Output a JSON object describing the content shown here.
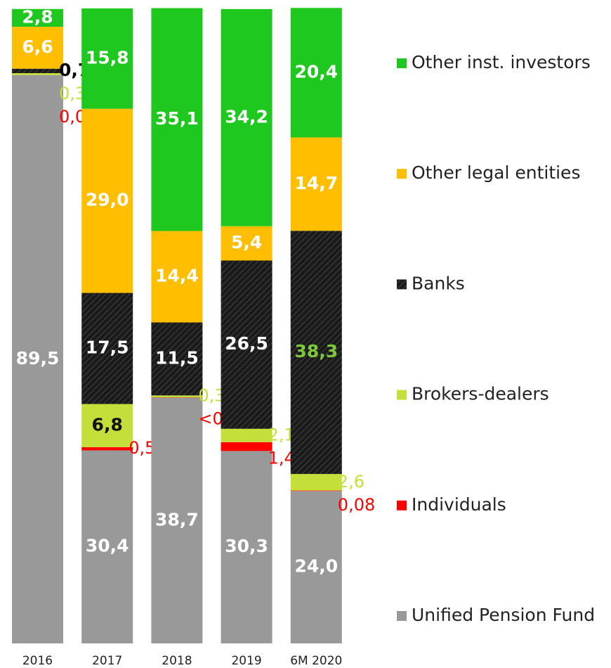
{
  "chart_data": {
    "type": "stacked_bar",
    "categories": [
      "2016",
      "2017",
      "2018",
      "2019",
      "6M 2020"
    ],
    "ylim": [
      0,
      100
    ],
    "series": [
      {
        "name": "Unified Pension Fund",
        "color": "#999999",
        "values": [
          89.5,
          30.4,
          38.7,
          30.3,
          24.0
        ],
        "value_labels": [
          "89,5",
          "30,4",
          "38,7",
          "30,3",
          "24,0"
        ]
      },
      {
        "name": "Individuals",
        "color": "#ff0000",
        "values": [
          0.01,
          0.5,
          0.05,
          1.4,
          0.08
        ],
        "value_labels": [
          "0,01",
          "0,5",
          "<0,1",
          "1,4",
          "0,08"
        ]
      },
      {
        "name": "Brokers-dealers",
        "color": "#c5df3a",
        "values": [
          0.3,
          6.8,
          0.3,
          2.1,
          2.6
        ],
        "value_labels": [
          "0,3",
          "6,8",
          "0,3",
          "2,1",
          "2,6"
        ]
      },
      {
        "name": "Banks",
        "color": "#1a1a1a",
        "hatched": true,
        "values": [
          0.7,
          17.5,
          11.5,
          26.5,
          38.3
        ],
        "value_labels": [
          "0,7",
          "17,5",
          "11,5",
          "26,5",
          "38,3"
        ]
      },
      {
        "name": "Other legal entities",
        "color": "#ffbf00",
        "values": [
          6.6,
          29.0,
          14.4,
          5.4,
          14.7
        ],
        "value_labels": [
          "6,6",
          "29,0",
          "14,4",
          "5,4",
          "14,7"
        ]
      },
      {
        "name": "Other inst. investors",
        "color": "#1ec81e",
        "values": [
          2.8,
          15.8,
          35.1,
          34.2,
          20.4
        ],
        "value_labels": [
          "2,8",
          "15,8",
          "35,1",
          "34,2",
          "20,4"
        ]
      }
    ]
  }
}
